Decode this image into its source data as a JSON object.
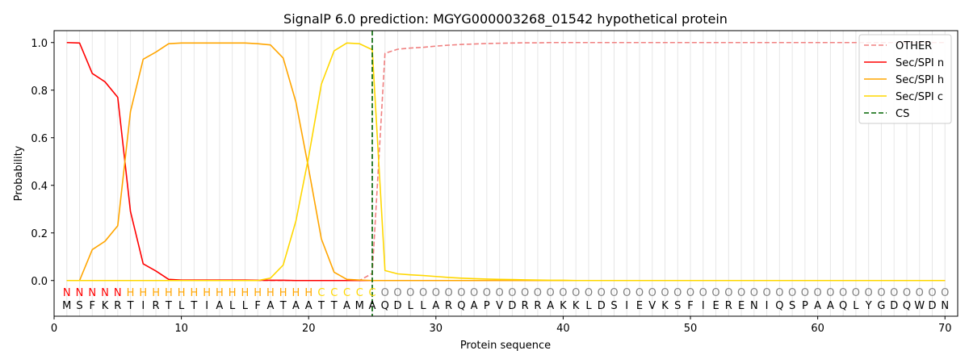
{
  "chart_data": {
    "type": "line",
    "title": "SignalP 6.0 prediction: MGYG000003268_01542 hypothetical protein",
    "xlabel": "Protein sequence",
    "ylabel": "Probability",
    "xlim": [
      0,
      71
    ],
    "ylim": [
      -0.15,
      1.05
    ],
    "x_ticks": [
      0,
      10,
      20,
      30,
      40,
      50,
      60,
      70
    ],
    "y_ticks": [
      0.0,
      0.2,
      0.4,
      0.6,
      0.8,
      1.0
    ],
    "x_tick_labels": [
      "0",
      "10",
      "20",
      "30",
      "40",
      "50",
      "60",
      "70"
    ],
    "y_tick_labels": [
      "0.0",
      "0.2",
      "0.4",
      "0.6",
      "0.8",
      "1.0"
    ],
    "grid": "vertical lines at each residue",
    "legend_position": "top-right",
    "sequence": "MSFKRTIRTLTIALLFATAATTAMAQDLLARQAPVDRRAKKLDSIEVKSFIERENIQSPAAQLYGDQWDN",
    "labels": "NNNNNHHHHHHHHHHHHHHHCCCCCOOOOOOOOOOOOOOOOOOOOOOOOOOOOOOOOOOOOOOOOOOOOO",
    "label_colors": {
      "N": "#ff0000",
      "H": "#ffa500",
      "C": "#ffd700",
      "O": "#808080"
    },
    "cleavage_site": 25,
    "series": [
      {
        "name": "OTHER",
        "color": "#f08080",
        "dash": true,
        "values": [
          0,
          0,
          0,
          0,
          0,
          0,
          0,
          0,
          0,
          0,
          0,
          0,
          0,
          0,
          0,
          0,
          0,
          0,
          0,
          0,
          0,
          0,
          0,
          0,
          0.03,
          0.955,
          0.972,
          0.977,
          0.98,
          0.985,
          0.989,
          0.992,
          0.994,
          0.996,
          0.997,
          0.998,
          0.999,
          0.999,
          1,
          1,
          1,
          1,
          1,
          1,
          1,
          1,
          1,
          1,
          1,
          1,
          1,
          1,
          1,
          1,
          1,
          1,
          1,
          1,
          1,
          1,
          1,
          1,
          1,
          1,
          1,
          1,
          1,
          1,
          1,
          1
        ]
      },
      {
        "name": "Sec/SPI n",
        "color": "#ff0000",
        "dash": false,
        "values": [
          1.0,
          0.998,
          0.87,
          0.835,
          0.77,
          0.29,
          0.07,
          0.04,
          0.005,
          0.002,
          0.002,
          0.002,
          0.002,
          0.002,
          0.002,
          0.001,
          0.001,
          0.001,
          0,
          0,
          0,
          0,
          0,
          0,
          0,
          0,
          0,
          0,
          0,
          0,
          0,
          0,
          0,
          0,
          0,
          0,
          0,
          0,
          0,
          0,
          0,
          0,
          0,
          0,
          0,
          0,
          0,
          0,
          0,
          0,
          0,
          0,
          0,
          0,
          0,
          0,
          0,
          0,
          0,
          0,
          0,
          0,
          0,
          0,
          0,
          0,
          0,
          0,
          0,
          0
        ]
      },
      {
        "name": "Sec/SPI h",
        "color": "#ffa500",
        "dash": false,
        "values": [
          0,
          0,
          0.13,
          0.165,
          0.23,
          0.71,
          0.93,
          0.96,
          0.995,
          0.998,
          0.998,
          0.998,
          0.998,
          0.998,
          0.998,
          0.995,
          0.99,
          0.935,
          0.75,
          0.47,
          0.175,
          0.035,
          0.005,
          0.002,
          0,
          0,
          0,
          0,
          0,
          0,
          0,
          0,
          0,
          0,
          0,
          0,
          0,
          0,
          0,
          0,
          0,
          0,
          0,
          0,
          0,
          0,
          0,
          0,
          0,
          0,
          0,
          0,
          0,
          0,
          0,
          0,
          0,
          0,
          0,
          0,
          0,
          0,
          0,
          0,
          0,
          0,
          0,
          0,
          0,
          0
        ]
      },
      {
        "name": "Sec/SPI c",
        "color": "#ffd700",
        "dash": false,
        "values": [
          0,
          0,
          0,
          0,
          0,
          0,
          0,
          0,
          0,
          0,
          0,
          0,
          0,
          0,
          0,
          0,
          0.01,
          0.065,
          0.25,
          0.52,
          0.825,
          0.965,
          0.998,
          0.995,
          0.97,
          0.042,
          0.028,
          0.024,
          0.021,
          0.017,
          0.013,
          0.01,
          0.008,
          0.006,
          0.005,
          0.004,
          0.003,
          0.002,
          0.001,
          0.001,
          0,
          0,
          0,
          0,
          0,
          0,
          0,
          0,
          0,
          0,
          0,
          0,
          0,
          0,
          0,
          0,
          0,
          0,
          0,
          0,
          0,
          0,
          0,
          0,
          0,
          0,
          0,
          0,
          0,
          0
        ]
      }
    ],
    "legend": [
      {
        "name": "OTHER",
        "color": "#f08080",
        "dash": true
      },
      {
        "name": "Sec/SPI n",
        "color": "#ff0000",
        "dash": false
      },
      {
        "name": "Sec/SPI h",
        "color": "#ffa500",
        "dash": false
      },
      {
        "name": "Sec/SPI c",
        "color": "#ffd700",
        "dash": false
      },
      {
        "name": "CS",
        "color": "#006400",
        "dash": true
      }
    ]
  }
}
